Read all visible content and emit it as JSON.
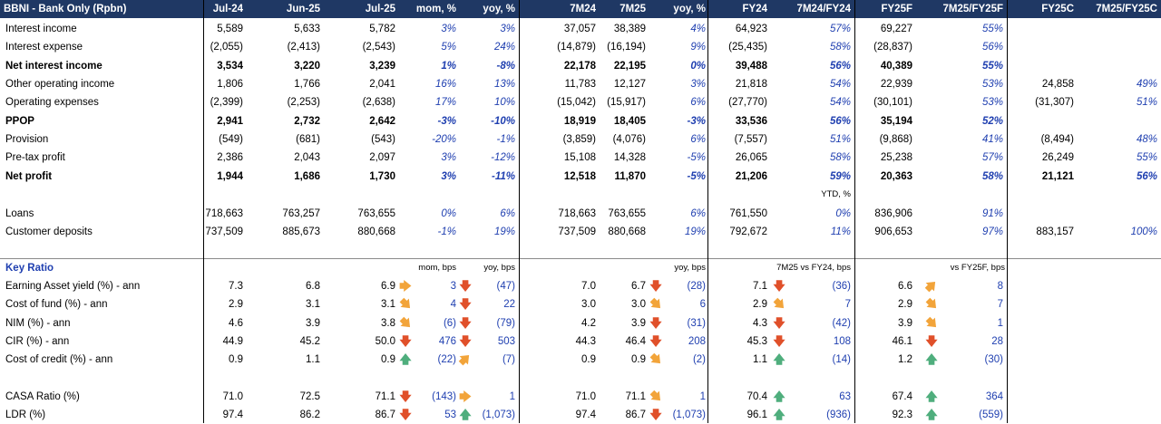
{
  "title": "BBNI - Bank Only (Rpbn)",
  "header": [
    "Jul-24",
    "Jun-25",
    "Jul-25",
    "mom, %",
    "yoy, %",
    "7M24",
    "7M25",
    "yoy, %",
    "FY24",
    "7M24/FY24",
    "FY25F",
    "7M25/FY25F",
    "FY25C",
    "7M25/FY25C"
  ],
  "rows": [
    {
      "label": "Interest income",
      "vals": [
        "5,589",
        "5,633",
        "5,782",
        "3%",
        "3%",
        "37,057",
        "38,389",
        "4%",
        "64,923",
        "57%",
        "69,227",
        "55%",
        "",
        ""
      ]
    },
    {
      "label": "Interest expense",
      "vals": [
        "(2,055)",
        "(2,413)",
        "(2,543)",
        "5%",
        "24%",
        "(14,879)",
        "(16,194)",
        "9%",
        "(25,435)",
        "58%",
        "(28,837)",
        "56%",
        "",
        ""
      ]
    },
    {
      "label": "Net interest income",
      "bold": true,
      "vals": [
        "3,534",
        "3,220",
        "3,239",
        "1%",
        "-8%",
        "22,178",
        "22,195",
        "0%",
        "39,488",
        "56%",
        "40,389",
        "55%",
        "",
        ""
      ]
    },
    {
      "label": "Other operating income",
      "vals": [
        "1,806",
        "1,766",
        "2,041",
        "16%",
        "13%",
        "11,783",
        "12,127",
        "3%",
        "21,818",
        "54%",
        "22,939",
        "53%",
        "24,858",
        "49%"
      ]
    },
    {
      "label": "Operating expenses",
      "vals": [
        "(2,399)",
        "(2,253)",
        "(2,638)",
        "17%",
        "10%",
        "(15,042)",
        "(15,917)",
        "6%",
        "(27,770)",
        "54%",
        "(30,101)",
        "53%",
        "(31,307)",
        "51%"
      ]
    },
    {
      "label": "PPOP",
      "bold": true,
      "vals": [
        "2,941",
        "2,732",
        "2,642",
        "-3%",
        "-10%",
        "18,919",
        "18,405",
        "-3%",
        "33,536",
        "56%",
        "35,194",
        "52%",
        "",
        ""
      ]
    },
    {
      "label": "Provision",
      "vals": [
        "(549)",
        "(681)",
        "(543)",
        "-20%",
        "-1%",
        "(3,859)",
        "(4,076)",
        "6%",
        "(7,557)",
        "51%",
        "(9,868)",
        "41%",
        "(8,494)",
        "48%"
      ]
    },
    {
      "label": "Pre-tax profit",
      "vals": [
        "2,386",
        "2,043",
        "2,097",
        "3%",
        "-12%",
        "15,108",
        "14,328",
        "-5%",
        "26,065",
        "58%",
        "25,238",
        "57%",
        "26,249",
        "55%"
      ]
    },
    {
      "label": "Net profit",
      "bold": true,
      "vals": [
        "1,944",
        "1,686",
        "1,730",
        "3%",
        "-11%",
        "12,518",
        "11,870",
        "-5%",
        "21,206",
        "59%",
        "20,363",
        "58%",
        "21,121",
        "56%"
      ]
    },
    {
      "label": "",
      "note": "YTD, %",
      "vals": [
        "",
        "",
        "",
        "",
        "",
        "",
        "",
        "",
        "",
        "",
        "",
        "",
        "",
        ""
      ]
    },
    {
      "label": "Loans",
      "vals": [
        "718,663",
        "763,257",
        "763,655",
        "0%",
        "6%",
        "718,663",
        "763,655",
        "6%",
        "761,550",
        "0%",
        "836,906",
        "91%",
        "",
        ""
      ]
    },
    {
      "label": "Customer deposits",
      "vals": [
        "737,509",
        "885,673",
        "880,668",
        "-1%",
        "19%",
        "737,509",
        "880,668",
        "19%",
        "792,672",
        "11%",
        "906,653",
        "97%",
        "883,157",
        "100%"
      ]
    }
  ],
  "ratio_section": {
    "title": "Key Ratio",
    "notes": {
      "mom": "mom, bps",
      "yoy": "yoy, bps",
      "yoy7m": "yoy, bps",
      "fy24": "7M25 vs FY24, bps",
      "fy25f": "vs FY25F, bps"
    },
    "rows": [
      {
        "label": "Earning Asset yield (%) - ann",
        "vals": [
          "7.3",
          "6.8",
          "6.9",
          "3",
          "(47)",
          "7.0",
          "6.7",
          "(28)",
          "7.1",
          "(36)",
          "6.6",
          "8"
        ],
        "arrows": [
          "flat",
          "down",
          "down",
          "down",
          "uright"
        ]
      },
      {
        "label": "Cost of fund (%) - ann",
        "vals": [
          "2.9",
          "3.1",
          "3.1",
          "4",
          "22",
          "3.0",
          "3.0",
          "6",
          "2.9",
          "7",
          "2.9",
          "7"
        ],
        "arrows": [
          "dright",
          "down",
          "dright",
          "dright",
          "dright"
        ]
      },
      {
        "label": "NIM (%) - ann",
        "vals": [
          "4.6",
          "3.9",
          "3.8",
          "(6)",
          "(79)",
          "4.2",
          "3.9",
          "(31)",
          "4.3",
          "(42)",
          "3.9",
          "1"
        ],
        "arrows": [
          "dright",
          "down",
          "down",
          "down",
          "dright"
        ]
      },
      {
        "label": "CIR (%) - ann",
        "vals": [
          "44.9",
          "45.2",
          "50.0",
          "476",
          "503",
          "44.3",
          "46.4",
          "208",
          "45.3",
          "108",
          "46.1",
          "28"
        ],
        "arrows": [
          "down",
          "down",
          "down",
          "down",
          "down"
        ]
      },
      {
        "label": "Cost of credit (%) - ann",
        "vals": [
          "0.9",
          "1.1",
          "0.9",
          "(22)",
          "(7)",
          "0.9",
          "0.9",
          "(2)",
          "1.1",
          "(14)",
          "1.2",
          "(30)"
        ],
        "arrows": [
          "up",
          "uright",
          "dright",
          "up",
          "up"
        ]
      },
      {
        "label": "",
        "vals": [
          "",
          "",
          "",
          "",
          "",
          "",
          "",
          "",
          "",
          "",
          "",
          ""
        ],
        "arrows": [
          "",
          "",
          "",
          "",
          ""
        ]
      },
      {
        "label": "CASA Ratio (%)",
        "vals": [
          "71.0",
          "72.5",
          "71.1",
          "(143)",
          "1",
          "71.0",
          "71.1",
          "1",
          "70.4",
          "63",
          "67.4",
          "364"
        ],
        "arrows": [
          "down",
          "flat",
          "dright",
          "up",
          "up"
        ]
      },
      {
        "label": "LDR (%)",
        "vals": [
          "97.4",
          "86.2",
          "86.7",
          "53",
          "(1,073)",
          "97.4",
          "86.7",
          "(1,073)",
          "96.1",
          "(936)",
          "92.3",
          "(559)"
        ],
        "arrows": [
          "down",
          "up",
          "down",
          "up",
          "up"
        ]
      }
    ]
  },
  "arrow_glyphs": {
    "up": "🡅",
    "down": "🡇",
    "flat": "🡆",
    "uright": "🡆",
    "dright": "🡆"
  }
}
